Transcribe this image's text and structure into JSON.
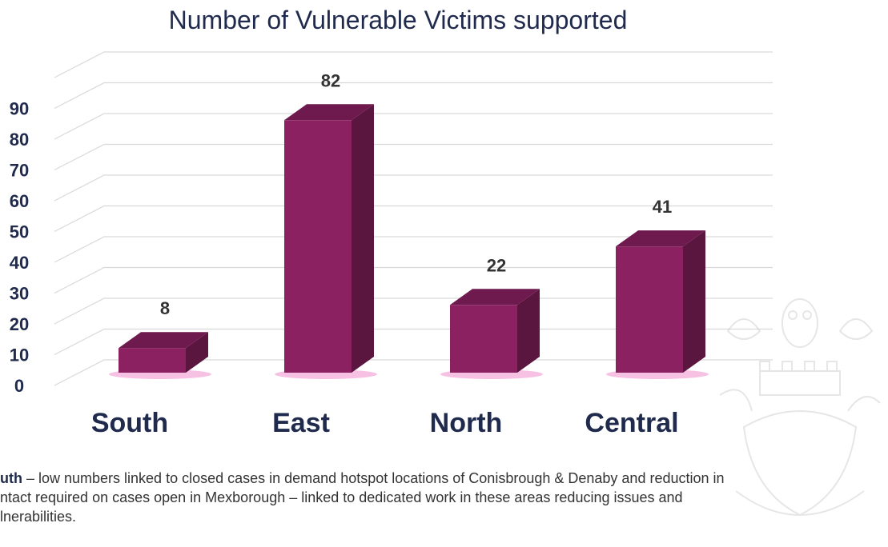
{
  "chart_data": {
    "type": "bar",
    "title": "Number of Vulnerable Victims supported",
    "categories": [
      "South",
      "East",
      "North",
      "Central"
    ],
    "values": [
      8,
      82,
      22,
      41
    ],
    "data_labels": [
      "8",
      "82",
      "22",
      "41"
    ],
    "y_ticks": [
      "0",
      "10",
      "20",
      "30",
      "40",
      "50",
      "60",
      "70",
      "80",
      "90"
    ],
    "ylim": [
      0,
      100
    ],
    "grid": true,
    "style": "3d-column",
    "colors": {
      "front": "#8b2161",
      "side": "#5b1640",
      "top": "#6e1a4e",
      "glow": "#f3a6d8"
    }
  },
  "note": {
    "lead": "uth",
    "text": " – low numbers linked to closed cases in demand hotspot locations of Conisbrough & Denaby and reduction in\nntact required on cases open in Mexborough – linked to dedicated work in these areas reducing issues and\nlnerabilities."
  },
  "watermark": {
    "icon": "crest-watermark-icon"
  }
}
